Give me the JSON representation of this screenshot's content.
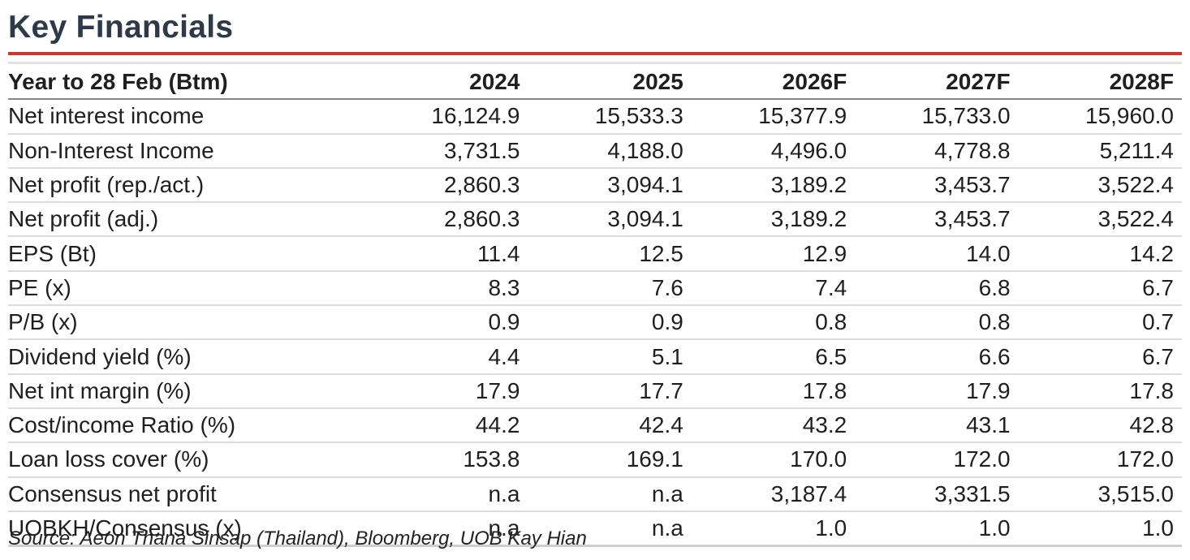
{
  "title": "Key Financials",
  "columns": [
    "Year to 28 Feb (Btm)",
    "2024",
    "2025",
    "2026F",
    "2027F",
    "2028F"
  ],
  "rows": [
    {
      "label": "Net interest income",
      "values": [
        "16,124.9",
        "15,533.3",
        "15,377.9",
        "15,733.0",
        "15,960.0"
      ]
    },
    {
      "label": "Non-Interest Income",
      "values": [
        "3,731.5",
        "4,188.0",
        "4,496.0",
        "4,778.8",
        "5,211.4"
      ]
    },
    {
      "label": "Net profit (rep./act.)",
      "values": [
        "2,860.3",
        "3,094.1",
        "3,189.2",
        "3,453.7",
        "3,522.4"
      ]
    },
    {
      "label": "Net profit (adj.)",
      "values": [
        "2,860.3",
        "3,094.1",
        "3,189.2",
        "3,453.7",
        "3,522.4"
      ]
    },
    {
      "label": "EPS (Bt)",
      "values": [
        "11.4",
        "12.5",
        "12.9",
        "14.0",
        "14.2"
      ]
    },
    {
      "label": "PE (x)",
      "values": [
        "8.3",
        "7.6",
        "7.4",
        "6.8",
        "6.7"
      ]
    },
    {
      "label": "P/B (x)",
      "values": [
        "0.9",
        "0.9",
        "0.8",
        "0.8",
        "0.7"
      ]
    },
    {
      "label": "Dividend yield (%)",
      "values": [
        "4.4",
        "5.1",
        "6.5",
        "6.6",
        "6.7"
      ]
    },
    {
      "label": "Net int margin (%)",
      "values": [
        "17.9",
        "17.7",
        "17.8",
        "17.9",
        "17.8"
      ]
    },
    {
      "label": "Cost/income Ratio (%)",
      "values": [
        "44.2",
        "42.4",
        "43.2",
        "43.1",
        "42.8"
      ]
    },
    {
      "label": "Loan loss cover (%)",
      "values": [
        "153.8",
        "169.1",
        "170.0",
        "172.0",
        "172.0"
      ]
    },
    {
      "label": "Consensus net profit",
      "values": [
        "n.a",
        "n.a",
        "3,187.4",
        "3,331.5",
        "3,515.0"
      ]
    },
    {
      "label": "UOBKH/Consensus (x)",
      "values": [
        "n.a",
        "n.a",
        "1.0",
        "1.0",
        "1.0"
      ]
    }
  ],
  "source": "Source: Aeon Thana Sinsap (Thailand), Bloomberg, UOB Kay Hian"
}
